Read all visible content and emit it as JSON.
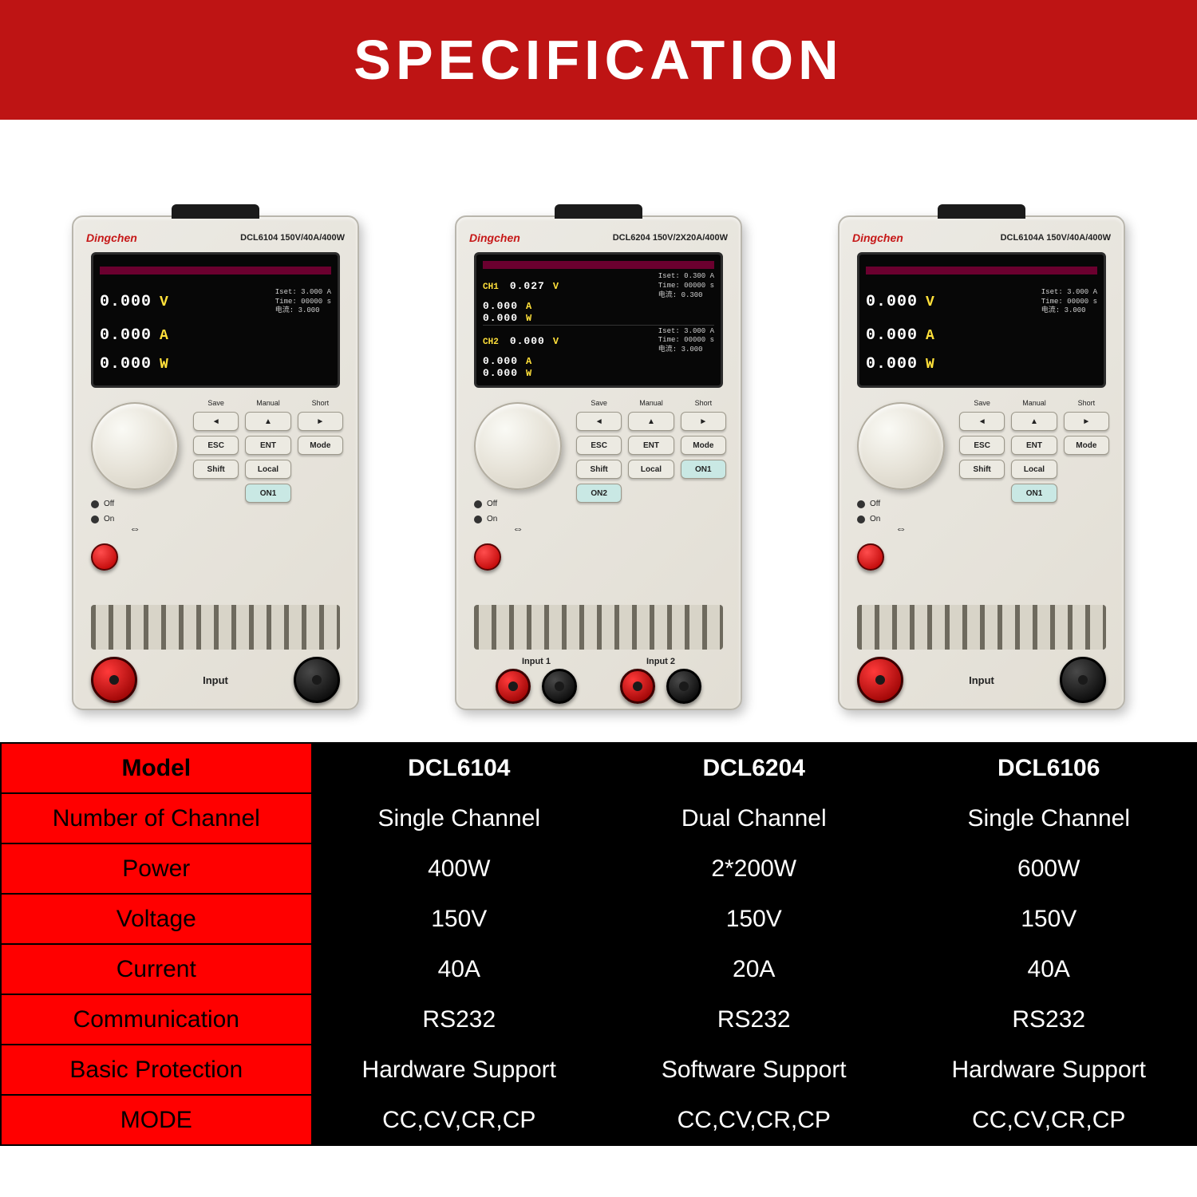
{
  "header": {
    "title": "SPECIFICATION"
  },
  "colors": {
    "header_bg": "#be1414",
    "header_text": "#ffffff",
    "label_bg": "#ff0000",
    "data_bg": "#000000",
    "data_text": "#ffffff",
    "device_body": "#e5e1d6",
    "screen_bg": "#070707",
    "unit_text": "#ffe03a",
    "brand_text": "#c61818"
  },
  "typography": {
    "title_fontsize_pt": 52,
    "table_fontsize_pt": 22,
    "font_family": "Arial"
  },
  "devices": [
    {
      "brand": "Dingchen",
      "model": "DCL6104",
      "rating": "150V/40A/400W",
      "channels": "single",
      "readings": [
        {
          "value": "0.000",
          "unit": "V"
        },
        {
          "value": "0.000",
          "unit": "A"
        },
        {
          "value": "0.000",
          "unit": "W"
        }
      ],
      "side_info": [
        "Iset: 3.000 A",
        "Time: 00000 s",
        "电流: 3.000"
      ],
      "button_labels_top": [
        "Save",
        "Manual",
        "Short"
      ],
      "buttons": [
        "◄",
        "▲",
        "►",
        "ESC",
        "ENT",
        "Mode",
        "Shift",
        "Local"
      ],
      "on_btn": "ON1",
      "switch_labels": [
        "Off",
        "On"
      ],
      "input_label": "Input",
      "terminals": [
        "red",
        "black"
      ]
    },
    {
      "brand": "Dingchen",
      "model": "DCL6204",
      "rating": "150V/2X20A/400W",
      "channels": "dual",
      "ch1": [
        {
          "value": "0.027",
          "unit": "V"
        },
        {
          "value": "0.000",
          "unit": "A"
        },
        {
          "value": "0.000",
          "unit": "W"
        }
      ],
      "ch1_side": [
        "Iset: 0.300 A",
        "Time: 00000 s",
        "电流: 0.300"
      ],
      "ch2": [
        {
          "value": "0.000",
          "unit": "V"
        },
        {
          "value": "0.000",
          "unit": "A"
        },
        {
          "value": "0.000",
          "unit": "W"
        }
      ],
      "ch2_side": [
        "Iset: 3.000 A",
        "Time: 00000 s",
        "电流: 3.000"
      ],
      "button_labels_top": [
        "Save",
        "Manual",
        "Short"
      ],
      "buttons": [
        "◄",
        "▲",
        "►",
        "ESC",
        "ENT",
        "Mode",
        "Shift",
        "Local"
      ],
      "on_btns": [
        "ON1",
        "ON2"
      ],
      "switch_labels": [
        "Off",
        "On"
      ],
      "input_labels": [
        "Input 1",
        "Input 2"
      ],
      "terminals": [
        "red",
        "black",
        "red",
        "black"
      ]
    },
    {
      "brand": "Dingchen",
      "model": "DCL6104A",
      "rating": "150V/40A/400W",
      "channels": "single",
      "readings": [
        {
          "value": "0.000",
          "unit": "V"
        },
        {
          "value": "0.000",
          "unit": "A"
        },
        {
          "value": "0.000",
          "unit": "W"
        }
      ],
      "side_info": [
        "Iset: 3.000 A",
        "Time: 00000 s",
        "电流: 3.000"
      ],
      "button_labels_top": [
        "Save",
        "Manual",
        "Short"
      ],
      "buttons": [
        "◄",
        "▲",
        "►",
        "ESC",
        "ENT",
        "Mode",
        "Shift",
        "Local"
      ],
      "on_btn": "ON1",
      "switch_labels": [
        "Off",
        "On"
      ],
      "input_label": "Input",
      "terminals": [
        "red",
        "black"
      ]
    }
  ],
  "spec_table": {
    "columns": [
      "Model",
      "DCL6104",
      "DCL6204",
      "DCL6106"
    ],
    "rows": [
      {
        "label": "Model",
        "values": [
          "DCL6104",
          "DCL6204",
          "DCL6106"
        ],
        "header": true
      },
      {
        "label": "Number of Channel",
        "values": [
          "Single Channel",
          "Dual Channel",
          "Single Channel"
        ]
      },
      {
        "label": "Power",
        "values": [
          "400W",
          "2*200W",
          "600W"
        ]
      },
      {
        "label": "Voltage",
        "values": [
          "150V",
          "150V",
          "150V"
        ]
      },
      {
        "label": "Current",
        "values": [
          "40A",
          "20A",
          "40A"
        ]
      },
      {
        "label": "Communication",
        "values": [
          "RS232",
          "RS232",
          "RS232"
        ]
      },
      {
        "label": "Basic Protection",
        "values": [
          "Hardware Support",
          "Software Support",
          "Hardware Support"
        ]
      },
      {
        "label": "MODE",
        "values": [
          "CC,CV,CR,CP",
          "CC,CV,CR,CP",
          "CC,CV,CR,CP"
        ]
      }
    ]
  }
}
